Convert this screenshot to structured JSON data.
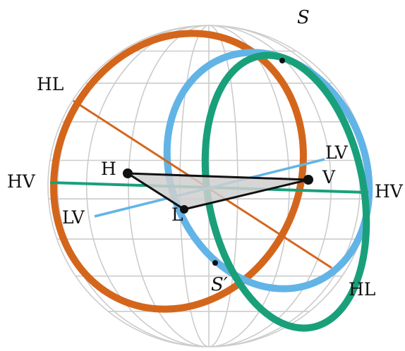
{
  "colors": {
    "background": "#ffffff",
    "grid": "#cccccc",
    "orange": "#d4661c",
    "blue": "#62b4e6",
    "green": "#19a07a",
    "triangle_fill": "#cfcfcf",
    "stroke_dark": "#111111"
  },
  "labels": {
    "s_top": "S",
    "s_bottom": "S′",
    "hl_top": "HL",
    "hl_bottom": "HL",
    "hv_left": "HV",
    "hv_right": "HV",
    "lv_left": "LV",
    "lv_right": "LV",
    "vertex_h": "H",
    "vertex_v": "V",
    "vertex_l": "L"
  }
}
